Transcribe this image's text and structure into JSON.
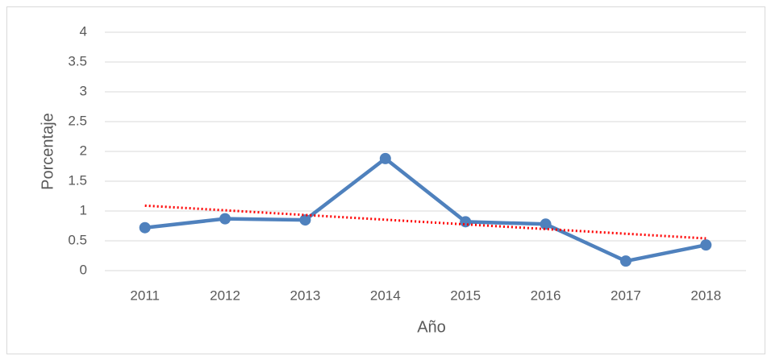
{
  "chart_data": {
    "type": "line",
    "categories": [
      "2011",
      "2012",
      "2013",
      "2014",
      "2015",
      "2016",
      "2017",
      "2018"
    ],
    "series": [
      {
        "name": "Porcentaje",
        "color": "#4f81bd",
        "values": [
          0.72,
          0.87,
          0.85,
          1.88,
          0.82,
          0.78,
          0.16,
          0.43
        ]
      }
    ],
    "trendline": {
      "type": "linear",
      "color": "#ff0000",
      "style": "dotted",
      "values": [
        1.09,
        0.54
      ]
    },
    "x_label": "Año",
    "y_label": "Porcentaje",
    "ylim": [
      0,
      4
    ],
    "yticks": [
      0,
      0.5,
      1,
      1.5,
      2,
      2.5,
      3,
      3.5,
      4
    ],
    "grid": true,
    "legend": false
  }
}
